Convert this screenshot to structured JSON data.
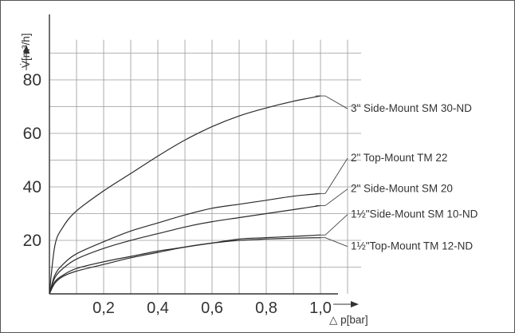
{
  "chart_data": {
    "type": "line",
    "ylabel": "V̇[m³/h]",
    "xlabel": "△ p[bar]",
    "xlim": [
      0,
      1.15
    ],
    "ylim": [
      0,
      95
    ],
    "grid": true,
    "x_ticks": [
      0.2,
      0.4,
      0.6,
      0.8,
      1.0
    ],
    "x_tick_labels": [
      "0,2",
      "0,4",
      "0,6",
      "0,8",
      "1,0"
    ],
    "y_ticks": [
      20,
      40,
      60,
      80
    ],
    "y_tick_labels": [
      "20",
      "40",
      "60",
      "80"
    ],
    "series": [
      {
        "name": "3\" Side-Mount SM 30-ND",
        "x": [
          0,
          0.02,
          0.05,
          0.1,
          0.2,
          0.3,
          0.4,
          0.5,
          0.6,
          0.7,
          0.8,
          0.9,
          1.0
        ],
        "y": [
          0,
          18,
          25,
          31,
          38.5,
          45,
          51.5,
          57.5,
          62.5,
          66.5,
          69.5,
          72,
          74
        ]
      },
      {
        "name": "2\" Top-Mount TM 22",
        "x": [
          0,
          0.02,
          0.05,
          0.1,
          0.2,
          0.3,
          0.4,
          0.5,
          0.6,
          0.7,
          0.8,
          0.9,
          1.0
        ],
        "y": [
          0,
          7,
          11,
          15,
          19.5,
          23.5,
          26.5,
          29.5,
          32,
          33.5,
          35,
          36.5,
          37.5
        ]
      },
      {
        "name": "2\" Side-Mount SM 20",
        "x": [
          0,
          0.02,
          0.05,
          0.1,
          0.2,
          0.3,
          0.4,
          0.5,
          0.6,
          0.7,
          0.8,
          0.9,
          1.0
        ],
        "y": [
          0,
          6,
          9.5,
          13,
          17,
          20,
          22.5,
          25,
          27,
          28.5,
          30,
          31.5,
          33
        ]
      },
      {
        "name": "1½\"Side-Mount SM 10-ND",
        "x": [
          0,
          0.02,
          0.05,
          0.1,
          0.2,
          0.3,
          0.4,
          0.5,
          0.6,
          0.7,
          0.8,
          0.9,
          1.0
        ],
        "y": [
          0,
          4.5,
          7,
          9.5,
          12,
          14,
          16,
          17.5,
          19,
          20.5,
          21,
          21.5,
          22
        ]
      },
      {
        "name": "1½\"Top-Mount TM 12-ND",
        "x": [
          0,
          0.02,
          0.05,
          0.1,
          0.2,
          0.3,
          0.4,
          0.5,
          0.6,
          0.7,
          0.8,
          0.9,
          1.0
        ],
        "y": [
          0,
          4,
          6.5,
          8.5,
          11,
          13.5,
          15.5,
          17.5,
          19,
          20,
          20.5,
          20.8,
          21
        ]
      }
    ],
    "label_y": [
      68,
      49.5,
      38,
      28.5,
      16.5
    ]
  }
}
